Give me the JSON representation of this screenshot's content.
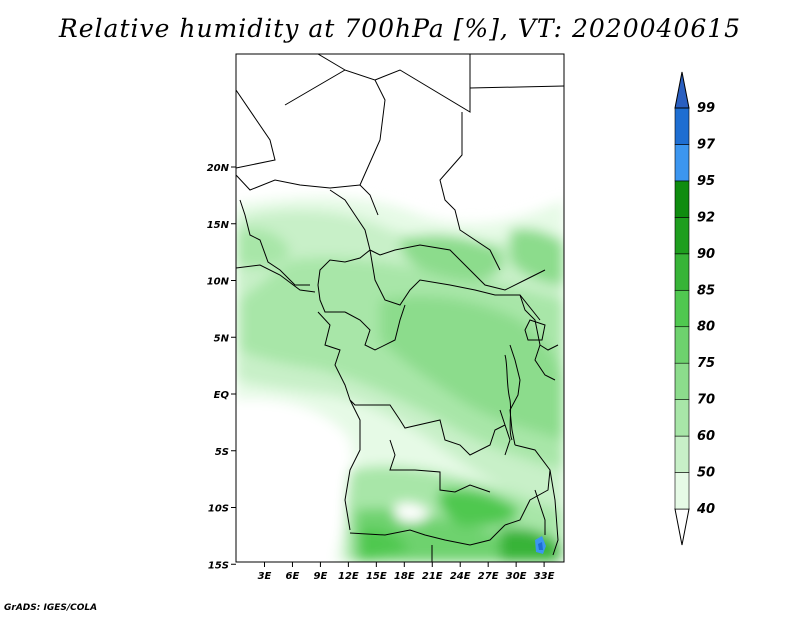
{
  "title": "Relative humidity at 700hPa [%], VT: 2020040615",
  "credit": "GrADS: IGES/COLA",
  "map": {
    "lat_ticks": [
      {
        "value": 20,
        "label": "20N"
      },
      {
        "value": 15,
        "label": "15N"
      },
      {
        "value": 10,
        "label": "10N"
      },
      {
        "value": 5,
        "label": "5N"
      },
      {
        "value": 0,
        "label": "EQ"
      },
      {
        "value": -5,
        "label": "5S"
      },
      {
        "value": -10,
        "label": "10S"
      },
      {
        "value": -15,
        "label": "15S"
      }
    ],
    "lon_ticks": [
      {
        "value": 3,
        "label": "3E"
      },
      {
        "value": 6,
        "label": "6E"
      },
      {
        "value": 9,
        "label": "9E"
      },
      {
        "value": 12,
        "label": "12E"
      },
      {
        "value": 15,
        "label": "15E"
      },
      {
        "value": 18,
        "label": "18E"
      },
      {
        "value": 21,
        "label": "21E"
      },
      {
        "value": 24,
        "label": "24E"
      },
      {
        "value": 27,
        "label": "27E"
      },
      {
        "value": 30,
        "label": "30E"
      },
      {
        "value": 33,
        "label": "33E"
      }
    ]
  },
  "colorbar": {
    "levels": [
      {
        "label": "40",
        "color": "#ffffff"
      },
      {
        "label": "50",
        "color": "#e6fae6"
      },
      {
        "label": "60",
        "color": "#c8f0c8"
      },
      {
        "label": "70",
        "color": "#a8e6a8"
      },
      {
        "label": "75",
        "color": "#8cdc8c"
      },
      {
        "label": "80",
        "color": "#6ed26e"
      },
      {
        "label": "85",
        "color": "#50c850"
      },
      {
        "label": "90",
        "color": "#37b437"
      },
      {
        "label": "92",
        "color": "#1e9e1e"
      },
      {
        "label": "95",
        "color": "#0f8c0f"
      },
      {
        "label": "97",
        "color": "#3c96f0"
      },
      {
        "label": "99",
        "color": "#1e6ed2"
      }
    ],
    "top_color": "#2a5fc0"
  }
}
